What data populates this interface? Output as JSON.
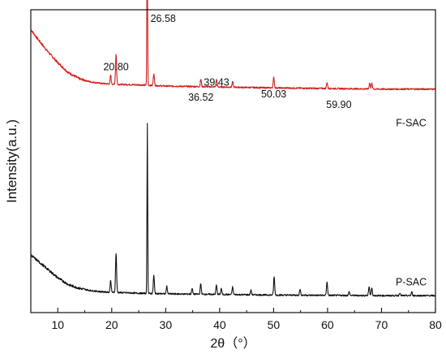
{
  "chart_data": {
    "type": "line",
    "xlabel": "2θ（°）",
    "ylabel": "Intensity(a.u.)",
    "xlim": [
      5,
      80
    ],
    "xticks": [
      10,
      20,
      30,
      40,
      50,
      60,
      70,
      80
    ],
    "y_ticks_shown": false,
    "grid": false,
    "series": [
      {
        "name": "F-SAC",
        "color": "#d21f1f",
        "baseline": 0.695,
        "background": [
          [
            5,
            0.935
          ],
          [
            6,
            0.91
          ],
          [
            8,
            0.865
          ],
          [
            10,
            0.825
          ],
          [
            12,
            0.792
          ],
          [
            14,
            0.772
          ],
          [
            16,
            0.762
          ],
          [
            18,
            0.757
          ],
          [
            20,
            0.754
          ],
          [
            25,
            0.752
          ],
          [
            30,
            0.748
          ],
          [
            40,
            0.745
          ],
          [
            50,
            0.742
          ],
          [
            60,
            0.74
          ],
          [
            70,
            0.738
          ],
          [
            80,
            0.738
          ]
        ],
        "peaks": [
          {
            "x": 19.8,
            "h": 0.03
          },
          {
            "x": 20.8,
            "h": 0.1
          },
          {
            "x": 26.58,
            "h": 0.5
          },
          {
            "x": 27.8,
            "h": 0.04
          },
          {
            "x": 36.52,
            "h": 0.025
          },
          {
            "x": 39.43,
            "h": 0.025
          },
          {
            "x": 42.4,
            "h": 0.018
          },
          {
            "x": 50.03,
            "h": 0.035
          },
          {
            "x": 59.9,
            "h": 0.02
          },
          {
            "x": 67.8,
            "h": 0.02
          },
          {
            "x": 68.2,
            "h": 0.018
          }
        ]
      },
      {
        "name": "P-SAC",
        "color": "#111111",
        "baseline": 0.055,
        "background": [
          [
            5,
            0.19
          ],
          [
            6,
            0.175
          ],
          [
            8,
            0.145
          ],
          [
            10,
            0.115
          ],
          [
            12,
            0.092
          ],
          [
            14,
            0.08
          ],
          [
            16,
            0.073
          ],
          [
            18,
            0.069
          ],
          [
            20,
            0.067
          ],
          [
            25,
            0.064
          ],
          [
            30,
            0.062
          ],
          [
            40,
            0.06
          ],
          [
            50,
            0.058
          ],
          [
            60,
            0.057
          ],
          [
            70,
            0.056
          ],
          [
            80,
            0.056
          ]
        ],
        "peaks": [
          {
            "x": 19.8,
            "h": 0.04
          },
          {
            "x": 20.8,
            "h": 0.13
          },
          {
            "x": 26.6,
            "h": 0.56
          },
          {
            "x": 27.8,
            "h": 0.06
          },
          {
            "x": 30.2,
            "h": 0.025
          },
          {
            "x": 34.9,
            "h": 0.02
          },
          {
            "x": 36.5,
            "h": 0.035
          },
          {
            "x": 39.4,
            "h": 0.03
          },
          {
            "x": 40.3,
            "h": 0.02
          },
          {
            "x": 42.4,
            "h": 0.025
          },
          {
            "x": 45.8,
            "h": 0.015
          },
          {
            "x": 50.1,
            "h": 0.06
          },
          {
            "x": 54.9,
            "h": 0.02
          },
          {
            "x": 59.9,
            "h": 0.045
          },
          {
            "x": 64.0,
            "h": 0.012
          },
          {
            "x": 67.7,
            "h": 0.03
          },
          {
            "x": 68.2,
            "h": 0.025
          },
          {
            "x": 73.4,
            "h": 0.01
          },
          {
            "x": 75.6,
            "h": 0.012
          }
        ]
      }
    ],
    "annotations": [
      {
        "label": "26.58",
        "x": 26.58,
        "y": 0.96,
        "series": 0
      },
      {
        "label": "20.80",
        "x": 20.8,
        "y": 0.8,
        "series": 0
      },
      {
        "label": "36.52",
        "x": 36.52,
        "y": 0.7,
        "series": 0
      },
      {
        "label": "39.43",
        "x": 39.43,
        "y": 0.75,
        "series": 0
      },
      {
        "label": "50.03",
        "x": 50.03,
        "y": 0.71,
        "series": 0
      },
      {
        "label": "59.90",
        "x": 59.9,
        "y": 0.675,
        "series": 0
      }
    ],
    "series_labels": [
      {
        "text": "F-SAC",
        "x": 75.5,
        "y": 0.615
      },
      {
        "text": "P-SAC",
        "x": 75.5,
        "y": 0.09
      }
    ]
  }
}
